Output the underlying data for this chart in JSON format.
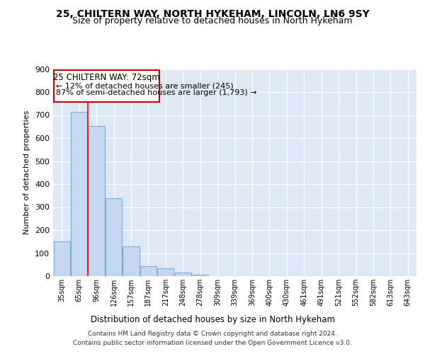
{
  "title1": "25, CHILTERN WAY, NORTH HYKEHAM, LINCOLN, LN6 9SY",
  "title2": "Size of property relative to detached houses in North Hykeham",
  "xlabel": "Distribution of detached houses by size in North Hykeham",
  "ylabel": "Number of detached properties",
  "categories": [
    "35sqm",
    "65sqm",
    "96sqm",
    "126sqm",
    "157sqm",
    "187sqm",
    "217sqm",
    "248sqm",
    "278sqm",
    "309sqm",
    "339sqm",
    "369sqm",
    "400sqm",
    "430sqm",
    "461sqm",
    "491sqm",
    "521sqm",
    "552sqm",
    "582sqm",
    "613sqm",
    "643sqm"
  ],
  "values": [
    152,
    714,
    652,
    338,
    130,
    44,
    33,
    14,
    5,
    0,
    0,
    0,
    0,
    0,
    0,
    0,
    0,
    0,
    0,
    0,
    0
  ],
  "bar_color": "#c5d8ef",
  "bar_edge_color": "#7aadd4",
  "red_line_x": 1.5,
  "annotation_text1": "25 CHILTERN WAY: 72sqm",
  "annotation_text2": "← 12% of detached houses are smaller (245)",
  "annotation_text3": "87% of semi-detached houses are larger (1,793) →",
  "annotation_box_edge": "#cc0000",
  "footer1": "Contains HM Land Registry data © Crown copyright and database right 2024.",
  "footer2": "Contains public sector information licensed under the Open Government Licence v3.0.",
  "ylim": [
    0,
    900
  ],
  "plot_bg_color": "#dde8f5",
  "title1_fontsize": 10,
  "title2_fontsize": 9,
  "ylabel_fontsize": 8,
  "xlabel_fontsize": 8.5
}
